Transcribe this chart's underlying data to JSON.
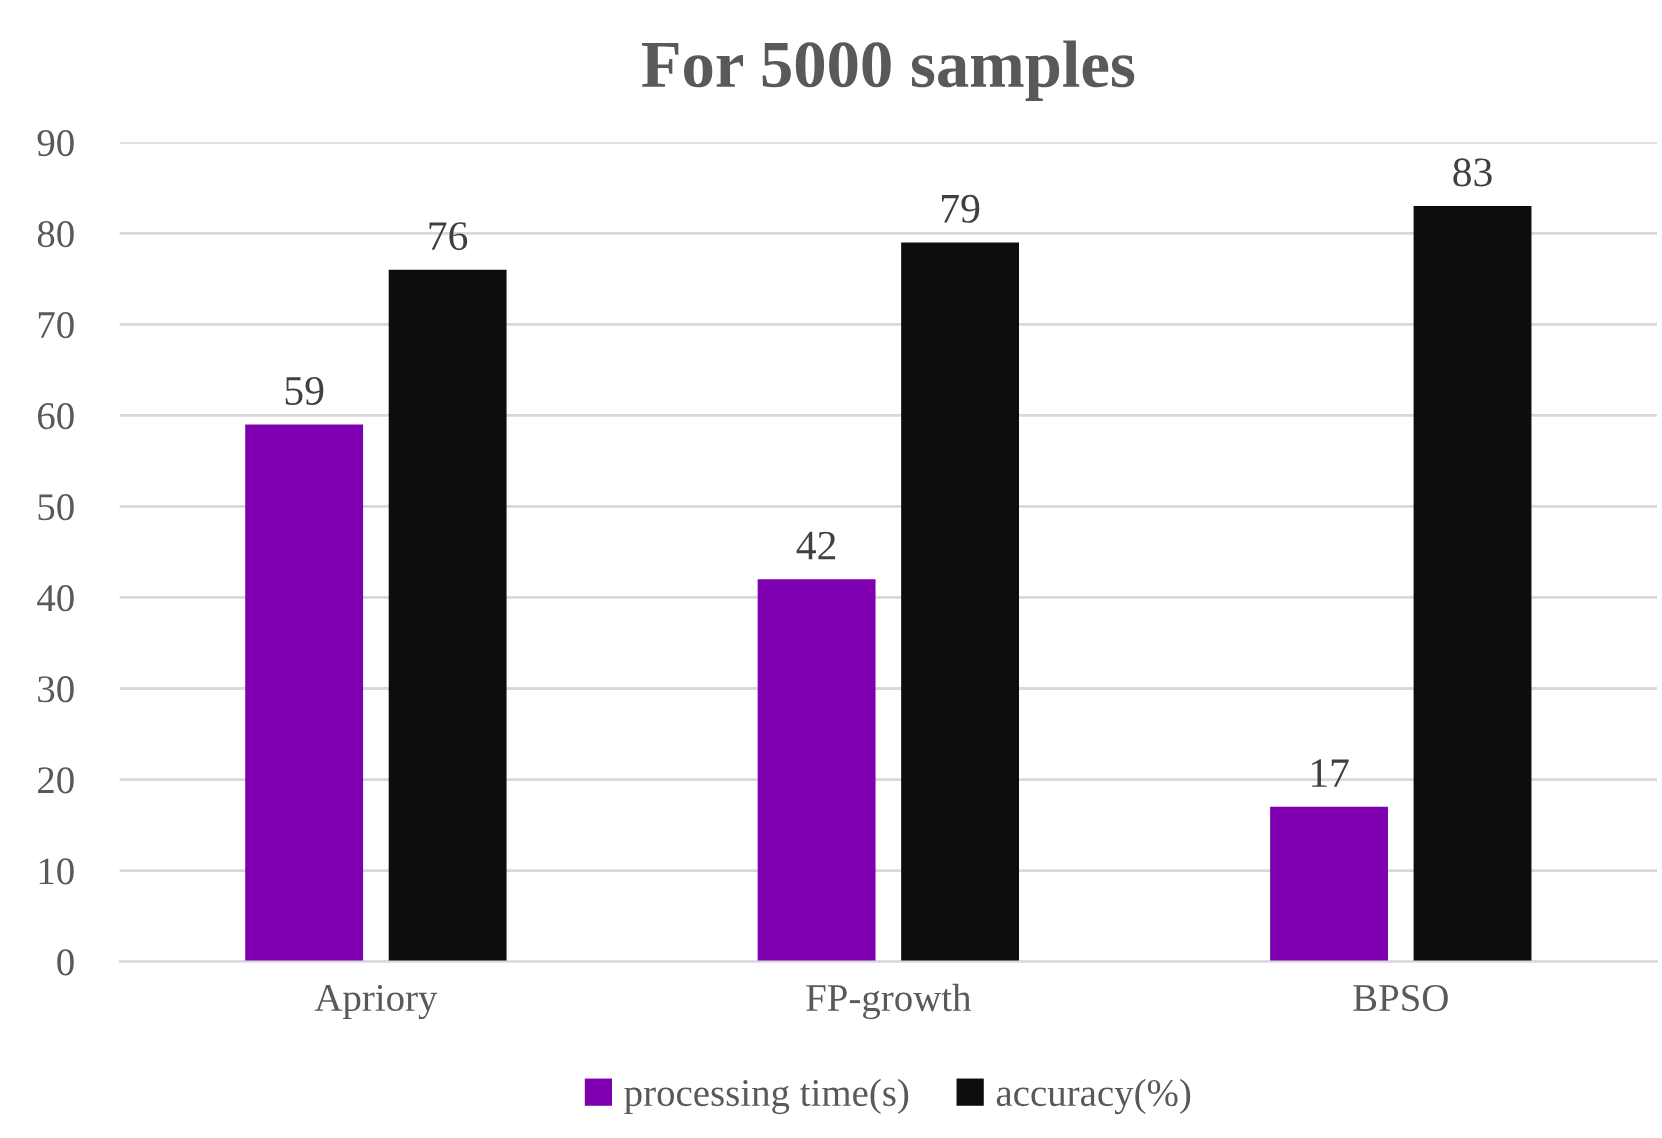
{
  "chart_data": {
    "type": "bar",
    "title": "For 5000 samples",
    "categories": [
      "Apriory",
      "FP-growth",
      "BPSO"
    ],
    "series": [
      {
        "name": "processing time(s)",
        "color": "#7f00b0",
        "values": [
          59,
          42,
          17
        ]
      },
      {
        "name": "accuracy(%)",
        "color": "#0d0d0d",
        "values": [
          76,
          79,
          83
        ]
      }
    ],
    "ylim": [
      0,
      90
    ],
    "yticks": [
      0,
      10,
      20,
      30,
      40,
      50,
      60,
      70,
      80,
      90
    ],
    "grid": "y",
    "legend": "bottom",
    "data_labels": true
  }
}
